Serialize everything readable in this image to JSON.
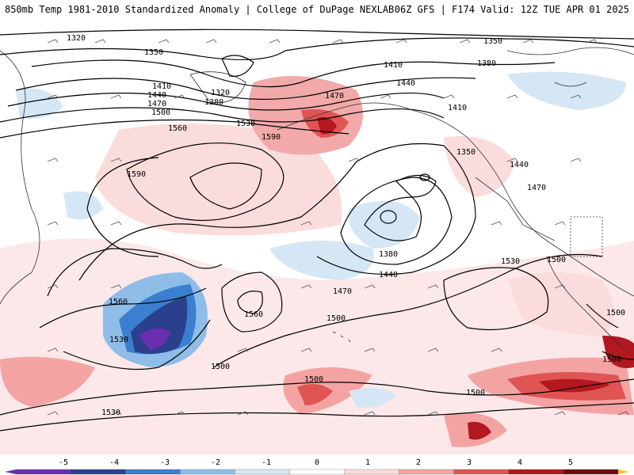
{
  "header": {
    "title_left": "850mb Temp 1981-2010 Standardized Anomaly | College of DuPage NEXLAB",
    "title_right": "06Z GFS | F174 Valid: 12Z TUE APR 01 2025"
  },
  "map": {
    "contour_labels": [
      "1320",
      "1350",
      "1410",
      "1440",
      "1470",
      "1500",
      "1530",
      "1560",
      "1590",
      "1380",
      "1320",
      "1350",
      "1380",
      "1410",
      "1440",
      "1470",
      "1590",
      "1560",
      "1350",
      "1410",
      "1380",
      "1440",
      "1470",
      "1500",
      "1530",
      "1560",
      "1440",
      "1470",
      "1500",
      "1500",
      "1530",
      "1500",
      "1500",
      "1500",
      "1500",
      "1530",
      "1380",
      "1410",
      "1440",
      "1470",
      "1500"
    ]
  },
  "colorbar": {
    "ticks": [
      "-5",
      "-4",
      "-3",
      "-2",
      "-1",
      "0",
      "1",
      "2",
      "3",
      "4",
      "5"
    ],
    "colors": [
      "#6a2fb0",
      "#2c3f8c",
      "#3a7fd0",
      "#8fbde8",
      "#d5e6f5",
      "#ffffff",
      "#fbdada",
      "#f4a3a3",
      "#e05454",
      "#b3171f",
      "#6b0d10"
    ],
    "low_end_color": "#6a2fb0",
    "high_end_color": "#f2c12e"
  }
}
